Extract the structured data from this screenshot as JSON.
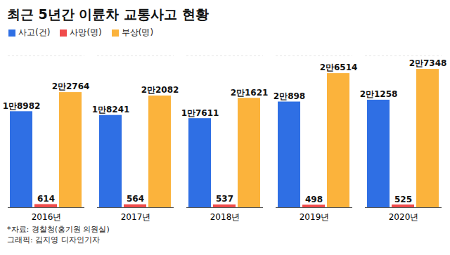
{
  "chart_data": {
    "type": "bar",
    "title": "최근 5년간 이륜차 교통사고 현황",
    "categories": [
      "2016년",
      "2017년",
      "2018년",
      "2019년",
      "2020년"
    ],
    "series": [
      {
        "name": "사고(건)",
        "color": "#2f6fe4",
        "values": [
          18982,
          18241,
          17611,
          20898,
          21258
        ],
        "value_labels": [
          "1만8982",
          "1만8241",
          "1만7611",
          "2만898",
          "2만1258"
        ]
      },
      {
        "name": "사망(명)",
        "color": "#f04b4b",
        "values": [
          614,
          564,
          537,
          498,
          525
        ]
      },
      {
        "name": "부상(명)",
        "color": "#fbb33c",
        "values": [
          22764,
          22082,
          21621,
          26514,
          27348
        ],
        "value_labels": [
          "2만2764",
          "2만2082",
          "2만1621",
          "2만6514",
          "2만7348"
        ]
      }
    ],
    "ylim": [
      0,
      30000
    ],
    "tick_labels": "x",
    "data_labels": true,
    "legend": "top-left",
    "source": "*자료: 경찰청(홍기원 의원실)",
    "credit": "그래픽: 김지영 디자인기자"
  }
}
